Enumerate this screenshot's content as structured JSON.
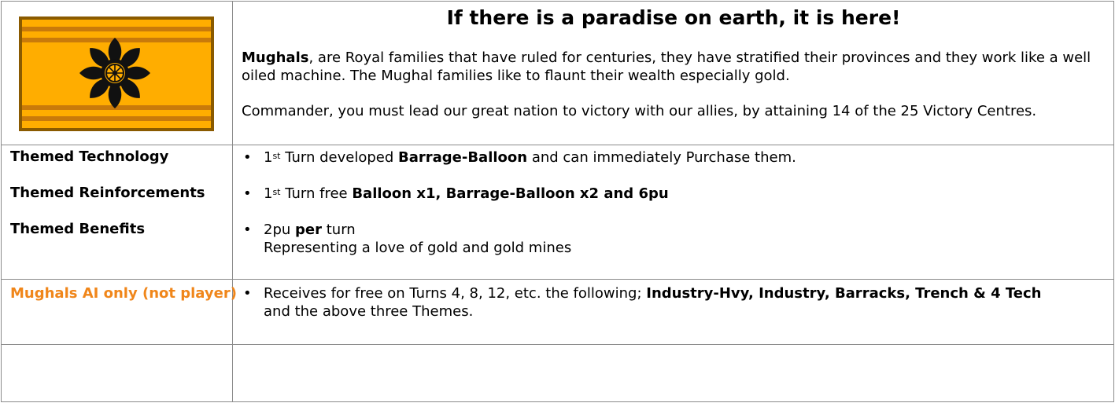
{
  "header": {
    "title": "If there is a paradise on earth, it is here!",
    "intro_bold": "Mughals",
    "intro_line1_rest": ", are Royal families that have ruled for centuries, they have stratified their provinces and they work like a well",
    "intro_line2": "oiled machine.  The Mughal families like to flaunt their wealth especially gold.",
    "mission": "Commander, you must lead our great nation to victory with our allies, by attaining 14 of the 25 Victory Centres."
  },
  "flag": {
    "icon": "black-lotus-wheel-emblem",
    "colors": {
      "field": "#ffad00",
      "stripes": "#c97a0a",
      "border": "#8a5a00",
      "emblem": "#111111"
    }
  },
  "themes": {
    "technology_label": "Themed Technology",
    "reinforcements_label": "Themed Reinforcements",
    "benefits_label": "Themed Benefits",
    "bullet": "•",
    "technology": {
      "num": "1",
      "sup": "st",
      "pre": " Turn developed ",
      "bold": "Barrage-Balloon",
      "post": " and can immediately Purchase them."
    },
    "reinforcements": {
      "num": "1",
      "sup": "st",
      "pre": " Turn free ",
      "bold": "Balloon x1, Barrage-Balloon x2 and 6pu"
    },
    "benefits": {
      "pre": "2pu ",
      "bold": "per",
      "post": " turn",
      "line2": "Representing a love of gold and gold mines"
    }
  },
  "ai": {
    "label": "Mughals AI only (not player)",
    "label_color": "#f0861a",
    "pre": "Receives for free on Turns 4, 8, 12, etc.  the following; ",
    "bold": "Industry-Hvy, Industry, Barracks, Trench & 4 Tech",
    "line2": "and the above three Themes."
  }
}
